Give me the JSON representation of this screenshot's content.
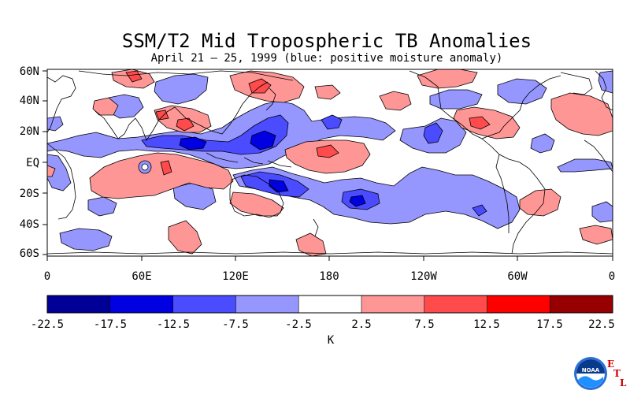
{
  "title": "SSM/T2 Mid Tropospheric TB Anomalies",
  "subtitle": "April 21 – 25, 1999 (blue: positive moisture anomaly)",
  "lat_ticks": [
    "60N",
    "40N",
    "20N",
    "EQ",
    "20S",
    "40S",
    "60S"
  ],
  "lon_ticks": [
    "0",
    "60E",
    "120E",
    "180",
    "120W",
    "60W",
    "0"
  ],
  "colorbar": {
    "unit": "K",
    "boundaries": [
      "-22.5",
      "-17.5",
      "-12.5",
      "-7.5",
      "-2.5",
      "2.5",
      "7.5",
      "12.5",
      "17.5",
      "22.5"
    ],
    "colors": [
      "#000096",
      "#0000e1",
      "#4b4bff",
      "#9696ff",
      "#ffffff",
      "#ff9696",
      "#ff4b4b",
      "#ff0000",
      "#960000"
    ]
  },
  "logo": {
    "text": "NOAA",
    "lab_letters": [
      "E",
      "T",
      "L"
    ]
  }
}
